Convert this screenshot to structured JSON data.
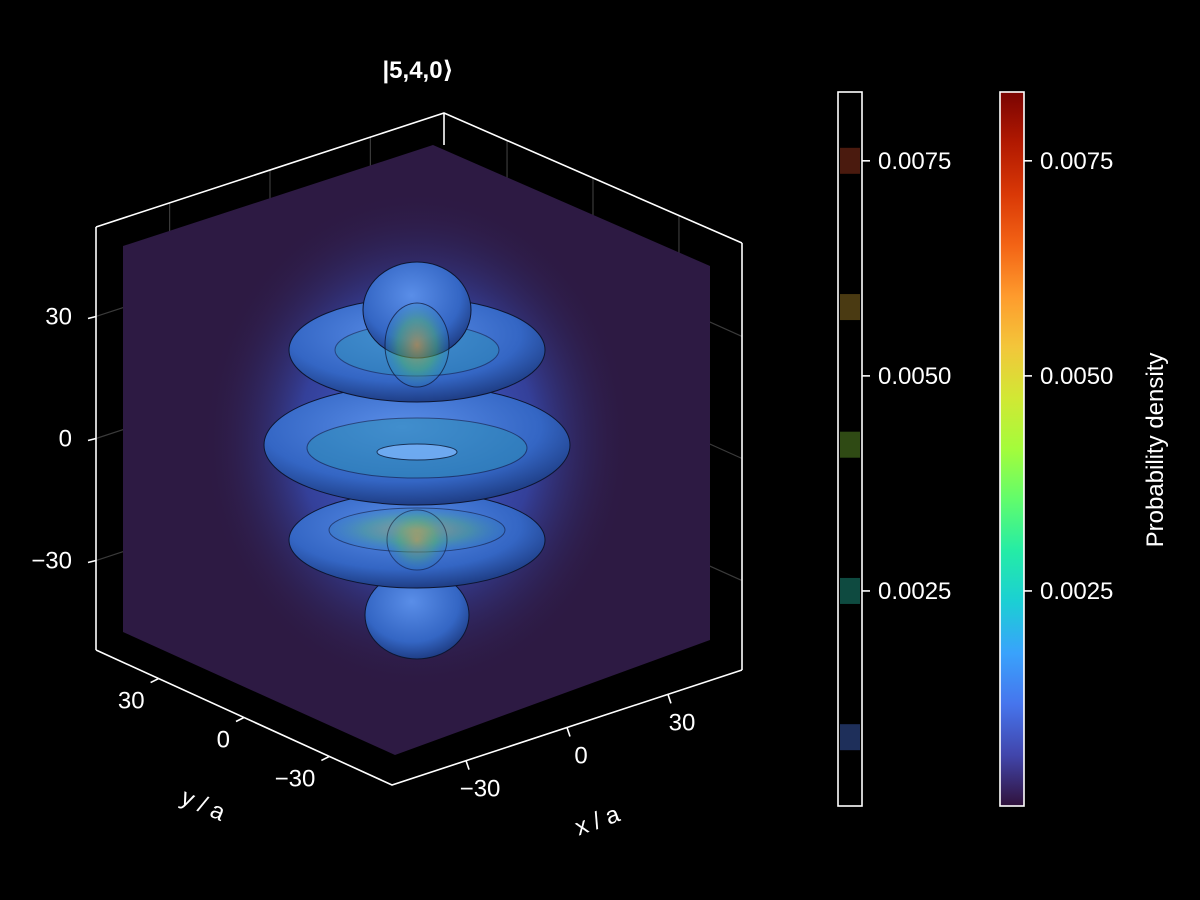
{
  "chart_data": [
    {
      "type": "volume3d",
      "title": "|5,4,0⟩",
      "xlabel": "x / a",
      "ylabel": "y / a",
      "zlabel": "",
      "x_ticks": [
        "−30",
        "0",
        "30"
      ],
      "y_ticks": [
        "30",
        "0",
        "−30"
      ],
      "z_ticks": [
        "30",
        "0",
        "−30"
      ],
      "x_tick_values": [
        -30,
        0,
        30
      ],
      "y_tick_values": [
        30,
        0,
        -30
      ],
      "z_tick_values": [
        30,
        0,
        -30
      ],
      "xlim": [
        -52,
        52
      ],
      "ylim": [
        -52,
        52
      ],
      "zlim": [
        -52,
        52
      ],
      "background_color": "#2d1a43",
      "orbital_color": "#3f6fd8"
    },
    {
      "type": "colorbar-contour",
      "label": "",
      "ticks": [
        "0.0025",
        "0.0050",
        "0.0075"
      ],
      "tick_values": [
        0.0025,
        0.005,
        0.0075
      ],
      "range": [
        0,
        0.0083
      ],
      "levels": [
        {
          "value": 0.0008,
          "color": "#1e2f5a"
        },
        {
          "value": 0.0025,
          "color": "#0e4a40"
        },
        {
          "value": 0.0042,
          "color": "#2f4a14"
        },
        {
          "value": 0.0058,
          "color": "#4a3a12"
        },
        {
          "value": 0.0075,
          "color": "#4a1a0e"
        }
      ]
    },
    {
      "type": "colorbar",
      "label": "Probability density",
      "ticks": [
        "0.0025",
        "0.0050",
        "0.0075"
      ],
      "tick_values": [
        0.0025,
        0.005,
        0.0075
      ],
      "range": [
        0,
        0.0083
      ],
      "colormap": "turbo",
      "colors": [
        "#30123b",
        "#4145ab",
        "#4675ed",
        "#39a2fc",
        "#1bcfd4",
        "#24eca6",
        "#61fc6c",
        "#a4fc3b",
        "#d1e834",
        "#f3c63a",
        "#fe9b2d",
        "#f36315",
        "#d93806",
        "#b11901",
        "#7a0402"
      ]
    }
  ]
}
